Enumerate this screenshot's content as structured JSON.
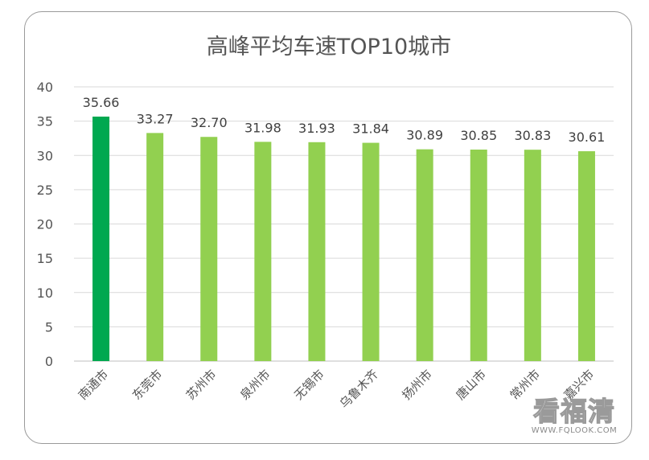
{
  "chart_data": {
    "type": "bar",
    "title": "高峰平均车速TOP10城市",
    "xlabel": "",
    "ylabel": "",
    "ylim": [
      0,
      40
    ],
    "yticks": [
      0,
      5,
      10,
      15,
      20,
      25,
      30,
      35,
      40
    ],
    "grid": true,
    "legend": "none",
    "categories": [
      "南通市",
      "东莞市",
      "苏州市",
      "泉州市",
      "无锡市",
      "乌鲁木齐",
      "扬州市",
      "唐山市",
      "常州市",
      "嘉兴市"
    ],
    "values": [
      35.66,
      33.27,
      32.7,
      31.98,
      31.93,
      31.84,
      30.89,
      30.85,
      30.83,
      30.61
    ],
    "data_labels": [
      "35.66",
      "33.27",
      "32.70",
      "31.98",
      "31.93",
      "31.84",
      "30.89",
      "30.85",
      "30.83",
      "30.61"
    ],
    "colors": {
      "highlight": "#00a850",
      "bar": "#92d050"
    },
    "highlight_index": 0
  },
  "watermark": {
    "text": "看福清",
    "url": "WWW.FQLOOK.COM"
  }
}
